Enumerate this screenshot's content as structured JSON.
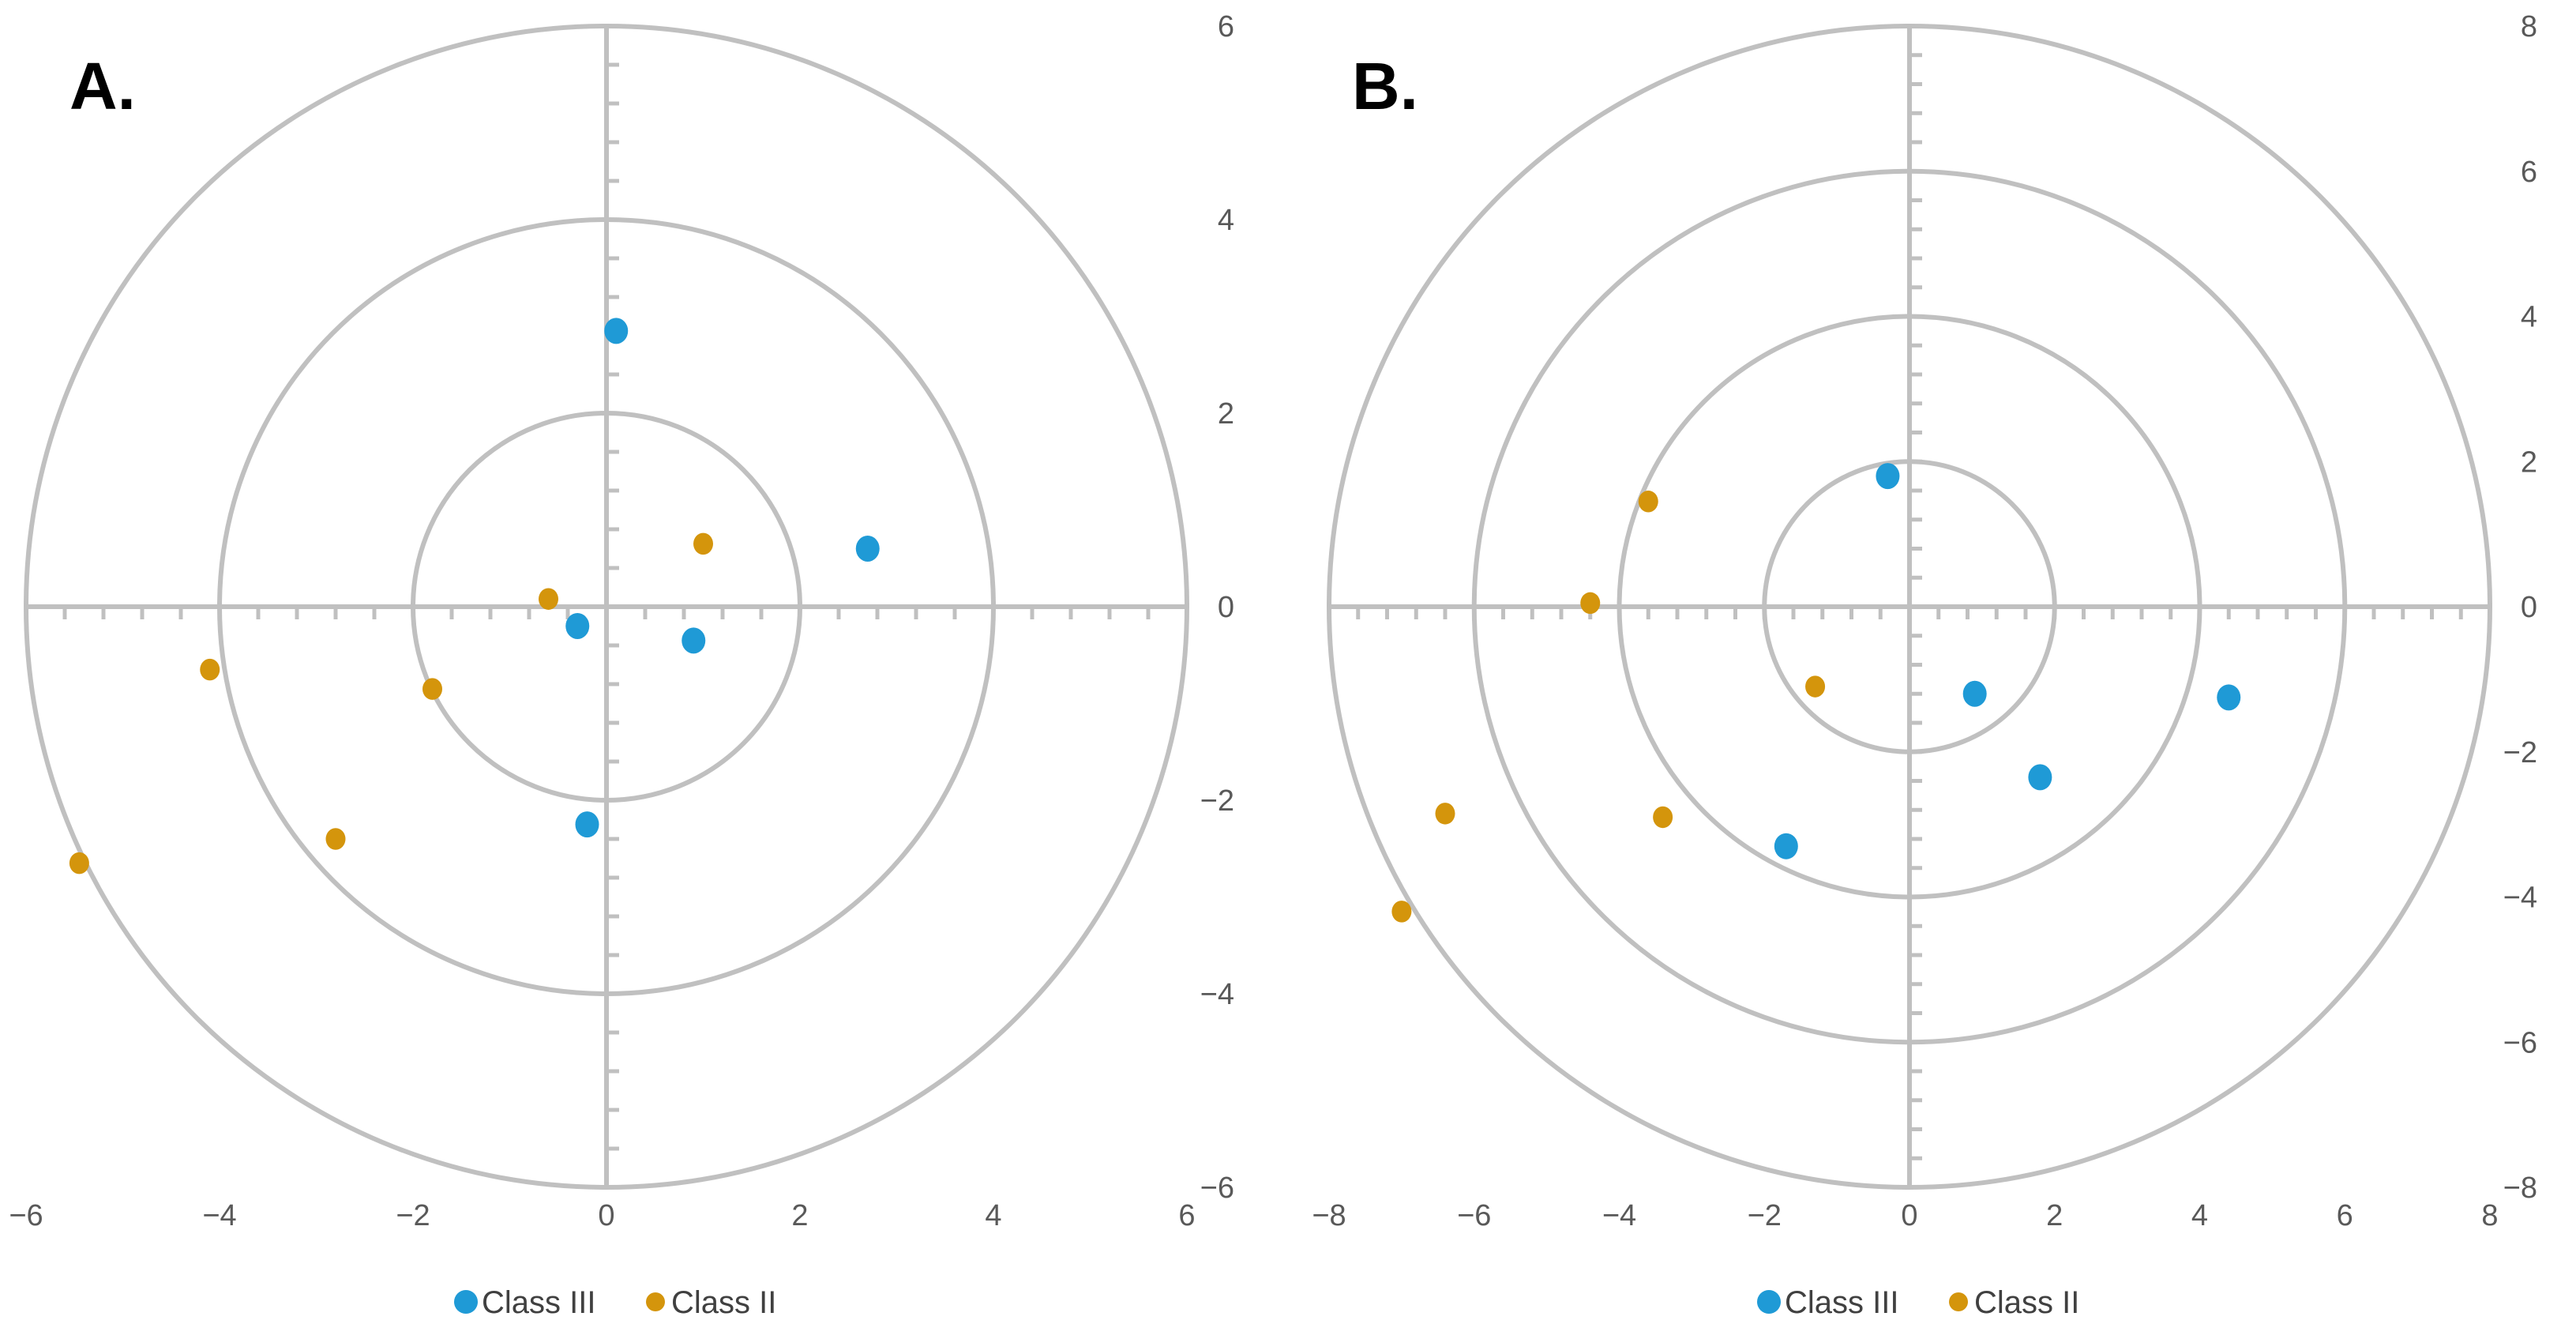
{
  "colors": {
    "class3": "#1f9ad6",
    "class2": "#d4950c",
    "grid": "#c0c0c0",
    "text": "#595959"
  },
  "chart_data": [
    {
      "type": "scatter",
      "panel": "A.",
      "xlim": [
        -6,
        6
      ],
      "ylim": [
        -6,
        6
      ],
      "grid": "concentric circles at radius 2, 4, 6",
      "x_tick_labels": [
        "−6",
        "−4",
        "−2",
        "0",
        "2",
        "4",
        "6"
      ],
      "y_tick_labels": [
        "6",
        "4",
        "2",
        "0",
        "−2",
        "−4",
        "−6"
      ],
      "legend": [
        "Class III",
        "Class II"
      ],
      "series": [
        {
          "name": "Class III",
          "color": "#1f9ad6",
          "x": [
            0.1,
            2.7,
            -0.3,
            0.9,
            -0.2
          ],
          "y": [
            2.85,
            0.6,
            -0.2,
            -0.35,
            -2.25
          ]
        },
        {
          "name": "Class II",
          "color": "#d4950c",
          "x": [
            1.0,
            -0.6,
            -1.8,
            -4.1,
            -2.8,
            -5.45
          ],
          "y": [
            0.65,
            0.08,
            -0.85,
            -0.65,
            -2.4,
            -2.65
          ]
        }
      ]
    },
    {
      "type": "scatter",
      "panel": "B.",
      "xlim": [
        -8,
        8
      ],
      "ylim": [
        -8,
        8
      ],
      "grid": "concentric circles at radius 2, 4, 6, 8",
      "x_tick_labels": [
        "−8",
        "−6",
        "−4",
        "−2",
        "0",
        "2",
        "4",
        "6",
        "8"
      ],
      "y_tick_labels": [
        "8",
        "6",
        "4",
        "2",
        "0",
        "−2",
        "−4",
        "−6",
        "−8"
      ],
      "legend": [
        "Class III",
        "Class II"
      ],
      "series": [
        {
          "name": "Class III",
          "color": "#1f9ad6",
          "x": [
            -0.3,
            0.9,
            4.4,
            1.8,
            -1.7
          ],
          "y": [
            1.8,
            -1.2,
            -1.25,
            -2.35,
            -3.3
          ]
        },
        {
          "name": "Class II",
          "color": "#d4950c",
          "x": [
            -3.6,
            -4.4,
            -1.3,
            -6.4,
            -3.4,
            -7.0
          ],
          "y": [
            1.45,
            0.05,
            -1.1,
            -2.85,
            -2.9,
            -4.2
          ]
        }
      ]
    }
  ]
}
